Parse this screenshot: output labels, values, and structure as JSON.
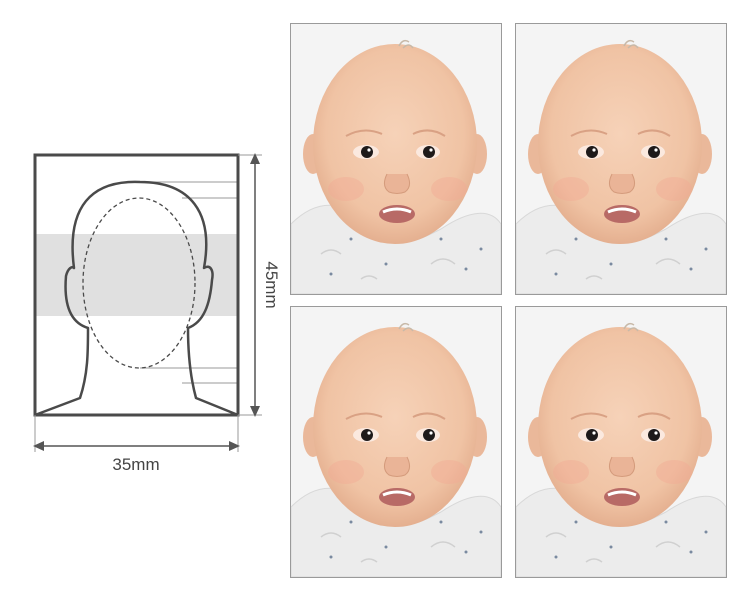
{
  "diagram": {
    "width_label": "35mm",
    "height_label": "45mm",
    "colors": {
      "frame": "#4a4a4a",
      "guide_band": "#e0e0e0",
      "guide_lines": "#9a9a9a",
      "arrow": "#555555"
    }
  },
  "photos": {
    "count": 4,
    "subject": "baby-portrait",
    "colors": {
      "background": "#f4f4f4",
      "skin": "#f0c3a4",
      "clothing": "#ececec",
      "border": "#9a9a9a"
    }
  }
}
